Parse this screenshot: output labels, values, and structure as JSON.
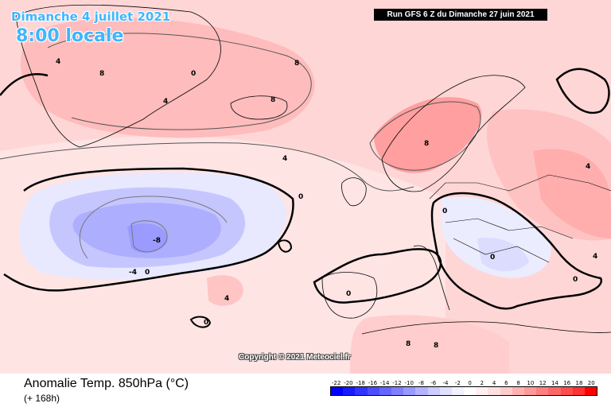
{
  "header": {
    "date": "Dimanche 4 juillet 2021",
    "time": "8:00 locale",
    "run": "Run GFS 6 Z du Dimanche 27 juin 2021"
  },
  "copyright": "Copyright © 2021 Meteociel.fr",
  "legend": {
    "title": "Anomalie Temp. 850hPa (°C)",
    "lead": "(+ 168h)",
    "ticks": [
      "-22",
      "-20",
      "-18",
      "-16",
      "-14",
      "-12",
      "-10",
      "-8",
      "-6",
      "-4",
      "-2",
      "0",
      "2",
      "4",
      "6",
      "8",
      "10",
      "12",
      "14",
      "16",
      "18",
      "20"
    ],
    "colors": [
      "#0000ff",
      "#1a1aff",
      "#3333ff",
      "#4d4dff",
      "#6666ff",
      "#7f7fff",
      "#9999ff",
      "#b2b2ff",
      "#ccccff",
      "#e0e0ff",
      "#f2f2ff",
      "#ffffff",
      "#fff0f0",
      "#ffe0e0",
      "#ffcccc",
      "#ffb2b2",
      "#ff9999",
      "#ff8080",
      "#ff6666",
      "#ff4d4d",
      "#ff3333",
      "#ff0000"
    ]
  },
  "map": {
    "contour_labels": [
      "0",
      "4",
      "8",
      "-4",
      "-8"
    ]
  }
}
